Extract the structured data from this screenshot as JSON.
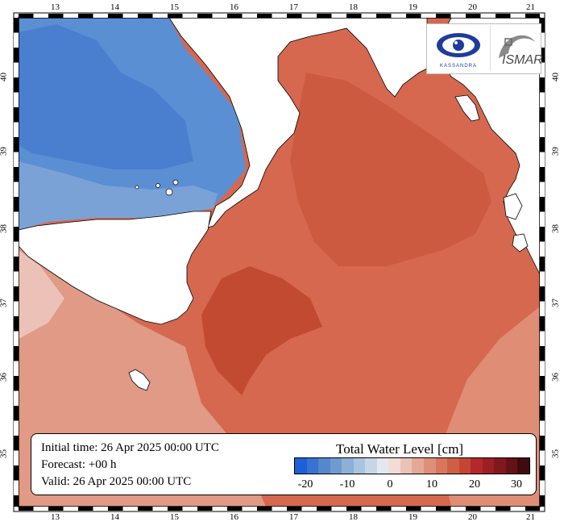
{
  "map": {
    "longitude_ticks": [
      "13",
      "14",
      "15",
      "16",
      "17",
      "18",
      "19",
      "20",
      "21"
    ],
    "latitude_ticks": [
      "35",
      "36",
      "37",
      "38",
      "39",
      "40"
    ]
  },
  "logos": {
    "kassandra_text": "KASSANDRA",
    "ismar_text": "ISMAR"
  },
  "info": {
    "initial_time": "Initial time: 26 Apr 2025 00:00 UTC",
    "forecast": "Forecast: +00 h",
    "valid": "Valid: 26 Apr 2025 00:00 UTC"
  },
  "legend": {
    "title": "Total Water Level [cm]",
    "tick_labels": [
      "-20",
      "-10",
      "0",
      "10",
      "20",
      "30"
    ],
    "colors": [
      "#1f5fd6",
      "#3a72cf",
      "#5587cc",
      "#6f9bd0",
      "#8cb0d8",
      "#a9c4df",
      "#c6d6e6",
      "#e4e8ee",
      "#f2dcd7",
      "#ecc2b8",
      "#e5a897",
      "#df8f79",
      "#d7765d",
      "#cf5e45",
      "#c44632",
      "#b3292b",
      "#9c1f24",
      "#80181e",
      "#631318",
      "#3f0b0f"
    ]
  },
  "colors": {
    "negative_region": "#5b8fd3",
    "positive_region": "#d6684f",
    "max_region": "#c24a31",
    "weak_positive": "#e09a86",
    "land": "#ffffff"
  }
}
